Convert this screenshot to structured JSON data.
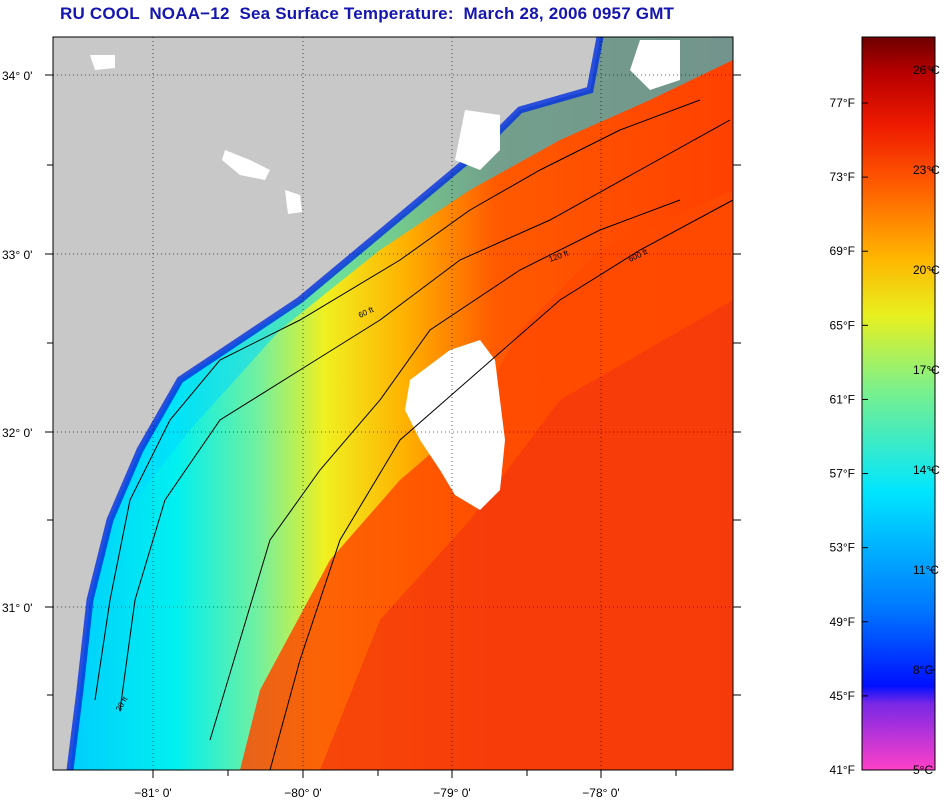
{
  "title": "RU COOL  NOAA−12  Sea Surface Temperature:  March 28, 2006 0957 GMT",
  "map": {
    "lat_labels": [
      "34° 0'",
      "33° 0'",
      "32° 0'",
      "31° 0'"
    ],
    "lon_labels": [
      "−81° 0'",
      "−80° 0'",
      "−79° 0'",
      "−78° 0'"
    ],
    "depth_labels": [
      "20 ft",
      "60 ft",
      "120 ft",
      "600 ft"
    ],
    "land_color": "#c8c8c8",
    "cloud_color": "#ffffff"
  },
  "colorbar": {
    "fahrenheit_labels": [
      "77°F",
      "73°F",
      "69°F",
      "65°F",
      "61°F",
      "57°F",
      "53°F",
      "49°F",
      "45°F",
      "41°F"
    ],
    "celsius_labels": [
      "26°C",
      "23°C",
      "20°C",
      "17°C",
      "14°C",
      "11°C",
      "8°C",
      "5°C"
    ],
    "colors": [
      "#ff40c8",
      "#7a28e6",
      "#0010ff",
      "#0078ff",
      "#00e6ff",
      "#7cf08a",
      "#e8f020",
      "#ffb400",
      "#ff5a00",
      "#ee1a00",
      "#b80000",
      "#6e0000"
    ]
  }
}
